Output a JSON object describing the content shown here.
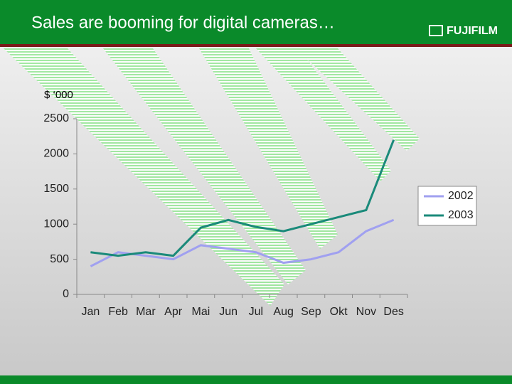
{
  "logo": "FUJIFILM",
  "chart_data": {
    "type": "line",
    "title": "Sales are booming for digital cameras…",
    "y_label": "$ ‘000",
    "categories": [
      "Jan",
      "Feb",
      "Mar",
      "Apr",
      "Mai",
      "Jun",
      "Jul",
      "Aug",
      "Sep",
      "Okt",
      "Nov",
      "Des"
    ],
    "series": [
      {
        "name": "2002",
        "color": "#a0a0f0",
        "values": [
          400,
          600,
          550,
          500,
          700,
          650,
          600,
          450,
          500,
          600,
          900,
          1060
        ]
      },
      {
        "name": "2003",
        "color": "#1a8a7a",
        "values": [
          600,
          550,
          600,
          550,
          950,
          1060,
          960,
          900,
          1000,
          1100,
          1200,
          2200
        ]
      }
    ],
    "ylim": [
      0,
      2500
    ],
    "yticks": [
      0,
      500,
      1000,
      1500,
      2000,
      2500
    ],
    "grid": false,
    "legend": "right"
  }
}
